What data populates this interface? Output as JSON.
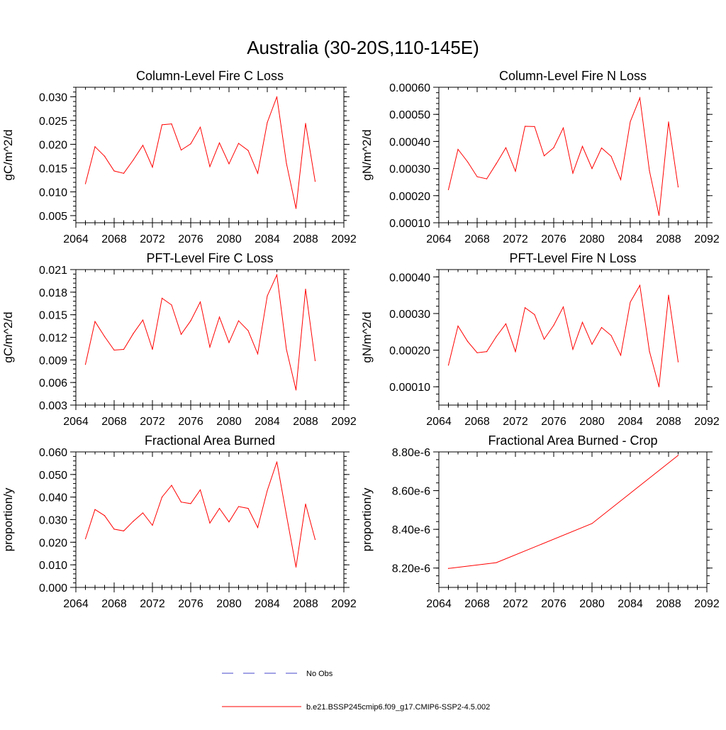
{
  "figure": {
    "title": "Australia (30-20S,110-145E)"
  },
  "legend": {
    "items": [
      {
        "label": "No Obs",
        "color": "#4444cc",
        "dash": true
      },
      {
        "label": "b.e21.BSSP245cmip6.f09_g17.CMIP6-SSP2-4.5.002",
        "color": "#ff0000",
        "dash": false
      }
    ]
  },
  "colors": {
    "series": "#ff0000",
    "axis": "#000000"
  },
  "chart_data": [
    {
      "type": "line",
      "title": "Column-Level Fire C Loss",
      "ylabel": "gC/m^2/d",
      "xlim": [
        2064,
        2092
      ],
      "ylim": [
        0.0035,
        0.032
      ],
      "xticks": [
        2064,
        2068,
        2072,
        2076,
        2080,
        2084,
        2088,
        2092
      ],
      "xtick_labels": [
        "2064",
        "2068",
        "2072",
        "2076",
        "2080",
        "2084",
        "2088",
        "2092"
      ],
      "yticks": [
        0.005,
        0.01,
        0.015,
        0.02,
        0.025,
        0.03
      ],
      "ytick_labels": [
        "0.005",
        "0.010",
        "0.015",
        "0.020",
        "0.025",
        "0.030"
      ],
      "x": [
        2065,
        2066,
        2067,
        2068,
        2069,
        2070,
        2071,
        2072,
        2073,
        2074,
        2075,
        2076,
        2077,
        2078,
        2079,
        2080,
        2081,
        2082,
        2083,
        2084,
        2085,
        2086,
        2087,
        2088,
        2089
      ],
      "series": [
        {
          "values": [
            0.0117,
            0.0195,
            0.0175,
            0.0144,
            0.0139,
            0.0167,
            0.0198,
            0.0152,
            0.0241,
            0.0243,
            0.0188,
            0.0201,
            0.0236,
            0.0153,
            0.0203,
            0.0159,
            0.0202,
            0.0187,
            0.0139,
            0.0246,
            0.03,
            0.016,
            0.0065,
            0.0244,
            0.0122
          ]
        }
      ]
    },
    {
      "type": "line",
      "title": "Column-Level Fire N Loss",
      "ylabel": "gN/m^2/d",
      "xlim": [
        2064,
        2092
      ],
      "ylim": [
        0.0001,
        0.0006
      ],
      "xticks": [
        2064,
        2068,
        2072,
        2076,
        2080,
        2084,
        2088,
        2092
      ],
      "xtick_labels": [
        "2064",
        "2068",
        "2072",
        "2076",
        "2080",
        "2084",
        "2088",
        "2092"
      ],
      "yticks": [
        0.0001,
        0.0002,
        0.0003,
        0.0004,
        0.0005,
        0.0006
      ],
      "ytick_labels": [
        "0.00010",
        "0.00020",
        "0.00030",
        "0.00040",
        "0.00050",
        "0.00060"
      ],
      "x": [
        2065,
        2066,
        2067,
        2068,
        2069,
        2070,
        2071,
        2072,
        2073,
        2074,
        2075,
        2076,
        2077,
        2078,
        2079,
        2080,
        2081,
        2082,
        2083,
        2084,
        2085,
        2086,
        2087,
        2088,
        2089
      ],
      "series": [
        {
          "values": [
            0.000222,
            0.000371,
            0.000325,
            0.00027,
            0.000262,
            0.000318,
            0.000377,
            0.00029,
            0.000456,
            0.000455,
            0.000347,
            0.000377,
            0.00045,
            0.000283,
            0.000382,
            0.0003,
            0.000376,
            0.000345,
            0.000259,
            0.000473,
            0.000561,
            0.000292,
            0.000127,
            0.000472,
            0.000232
          ]
        }
      ]
    },
    {
      "type": "line",
      "title": "PFT-Level Fire C Loss",
      "ylabel": "gC/m^2/d",
      "xlim": [
        2064,
        2092
      ],
      "ylim": [
        0.003,
        0.021
      ],
      "xticks": [
        2064,
        2068,
        2072,
        2076,
        2080,
        2084,
        2088,
        2092
      ],
      "xtick_labels": [
        "2064",
        "2068",
        "2072",
        "2076",
        "2080",
        "2084",
        "2088",
        "2092"
      ],
      "yticks": [
        0.003,
        0.006,
        0.009,
        0.012,
        0.015,
        0.018,
        0.021
      ],
      "ytick_labels": [
        "0.003",
        "0.006",
        "0.009",
        "0.012",
        "0.015",
        "0.018",
        "0.021"
      ],
      "x": [
        2065,
        2066,
        2067,
        2068,
        2069,
        2070,
        2071,
        2072,
        2073,
        2074,
        2075,
        2076,
        2077,
        2078,
        2079,
        2080,
        2081,
        2082,
        2083,
        2084,
        2085,
        2086,
        2087,
        2088,
        2089
      ],
      "series": [
        {
          "values": [
            0.0084,
            0.0141,
            0.0121,
            0.0103,
            0.0104,
            0.0125,
            0.0143,
            0.0104,
            0.0172,
            0.0163,
            0.0124,
            0.0142,
            0.0167,
            0.0107,
            0.0147,
            0.0113,
            0.0142,
            0.0129,
            0.0098,
            0.0175,
            0.0203,
            0.0104,
            0.005,
            0.0184,
            0.0089
          ]
        }
      ]
    },
    {
      "type": "line",
      "title": "PFT-Level Fire N Loss",
      "ylabel": "gN/m^2/d",
      "xlim": [
        2064,
        2092
      ],
      "ylim": [
        5e-05,
        0.00042
      ],
      "xticks": [
        2064,
        2068,
        2072,
        2076,
        2080,
        2084,
        2088,
        2092
      ],
      "xtick_labels": [
        "2064",
        "2068",
        "2072",
        "2076",
        "2080",
        "2084",
        "2088",
        "2092"
      ],
      "yticks": [
        0.0001,
        0.0002,
        0.0003,
        0.0004
      ],
      "ytick_labels": [
        "0.00010",
        "0.00020",
        "0.00030",
        "0.00040"
      ],
      "x": [
        2065,
        2066,
        2067,
        2068,
        2069,
        2070,
        2071,
        2072,
        2073,
        2074,
        2075,
        2076,
        2077,
        2078,
        2079,
        2080,
        2081,
        2082,
        2083,
        2084,
        2085,
        2086,
        2087,
        2088,
        2089
      ],
      "series": [
        {
          "values": [
            0.000159,
            0.000266,
            0.000224,
            0.000193,
            0.000196,
            0.000237,
            0.000272,
            0.000196,
            0.000316,
            0.000297,
            0.00023,
            0.000268,
            0.000318,
            0.000202,
            0.000276,
            0.000216,
            0.000262,
            0.00024,
            0.000186,
            0.000331,
            0.000377,
            0.000197,
            0.0001,
            0.00035,
            0.000168
          ]
        }
      ]
    },
    {
      "type": "line",
      "title": "Fractional Area Burned",
      "ylabel": "proportion/y",
      "xlim": [
        2064,
        2092
      ],
      "ylim": [
        0.0,
        0.06
      ],
      "xticks": [
        2064,
        2068,
        2072,
        2076,
        2080,
        2084,
        2088,
        2092
      ],
      "xtick_labels": [
        "2064",
        "2068",
        "2072",
        "2076",
        "2080",
        "2084",
        "2088",
        "2092"
      ],
      "yticks": [
        0.0,
        0.01,
        0.02,
        0.03,
        0.04,
        0.05,
        0.06
      ],
      "ytick_labels": [
        "0.000",
        "0.010",
        "0.020",
        "0.030",
        "0.040",
        "0.050",
        "0.060"
      ],
      "x": [
        2065,
        2066,
        2067,
        2068,
        2069,
        2070,
        2071,
        2072,
        2073,
        2074,
        2075,
        2076,
        2077,
        2078,
        2079,
        2080,
        2081,
        2082,
        2083,
        2084,
        2085,
        2086,
        2087,
        2088,
        2089
      ],
      "series": [
        {
          "values": [
            0.0215,
            0.0345,
            0.0318,
            0.0258,
            0.025,
            0.0293,
            0.033,
            0.0275,
            0.04,
            0.0452,
            0.0378,
            0.0371,
            0.0432,
            0.0285,
            0.035,
            0.029,
            0.0358,
            0.035,
            0.0265,
            0.0429,
            0.0556,
            0.032,
            0.009,
            0.0369,
            0.0212
          ]
        }
      ]
    },
    {
      "type": "line",
      "title": "Fractional Area Burned - Crop",
      "ylabel": "proportion/y",
      "xlim": [
        2064,
        2092
      ],
      "ylim": [
        8.1e-06,
        8.8e-06
      ],
      "xticks": [
        2064,
        2068,
        2072,
        2076,
        2080,
        2084,
        2088,
        2092
      ],
      "xtick_labels": [
        "2064",
        "2068",
        "2072",
        "2076",
        "2080",
        "2084",
        "2088",
        "2092"
      ],
      "yticks": [
        8.2e-06,
        8.4e-06,
        8.6e-06,
        8.8e-06
      ],
      "ytick_labels": [
        "8.20e-6",
        "8.40e-6",
        "8.60e-6",
        "8.80e-6"
      ],
      "x": [
        2065,
        2070,
        2080,
        2089
      ],
      "series": [
        {
          "values": [
            8.198e-06,
            8.228e-06,
            8.43e-06,
            8.782e-06
          ]
        }
      ]
    }
  ]
}
